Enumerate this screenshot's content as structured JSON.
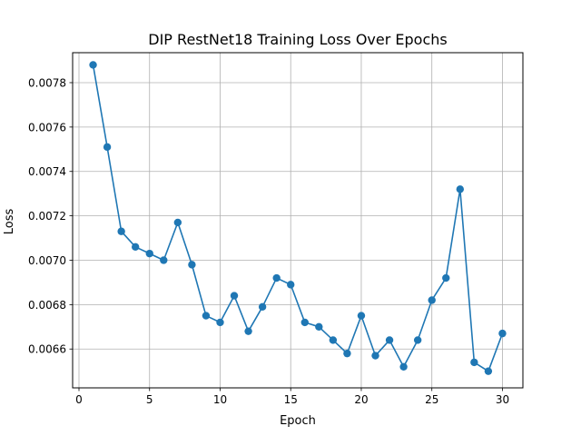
{
  "chart_data": {
    "type": "line",
    "title": "DIP RestNet18 Training Loss Over Epochs",
    "xlabel": "Epoch",
    "ylabel": "Loss",
    "xlim": [
      -0.45,
      31.45
    ],
    "ylim": [
      0.006425,
      0.007935
    ],
    "x_ticks": [
      0,
      5,
      10,
      15,
      20,
      25,
      30
    ],
    "y_ticks": [
      0.0066,
      0.0068,
      0.007,
      0.0072,
      0.0074,
      0.0076,
      0.0078
    ],
    "y_tick_labels": [
      "0.0066",
      "0.0068",
      "0.0070",
      "0.0072",
      "0.0074",
      "0.0076",
      "0.0078"
    ],
    "grid": true,
    "series": [
      {
        "color": "#1f77b4",
        "marker": "circle",
        "x": [
          1,
          2,
          3,
          4,
          5,
          6,
          7,
          8,
          9,
          10,
          11,
          12,
          13,
          14,
          15,
          16,
          17,
          18,
          19,
          20,
          21,
          22,
          23,
          24,
          25,
          26,
          27,
          28,
          29,
          30
        ],
        "y": [
          0.00788,
          0.00751,
          0.00713,
          0.00706,
          0.00703,
          0.007,
          0.00717,
          0.00698,
          0.00675,
          0.00672,
          0.00684,
          0.00668,
          0.00679,
          0.00692,
          0.00689,
          0.00672,
          0.0067,
          0.00664,
          0.00658,
          0.00675,
          0.00657,
          0.00664,
          0.00652,
          0.00664,
          0.00682,
          0.00692,
          0.00732,
          0.00654,
          0.0065,
          0.00667
        ]
      }
    ]
  }
}
